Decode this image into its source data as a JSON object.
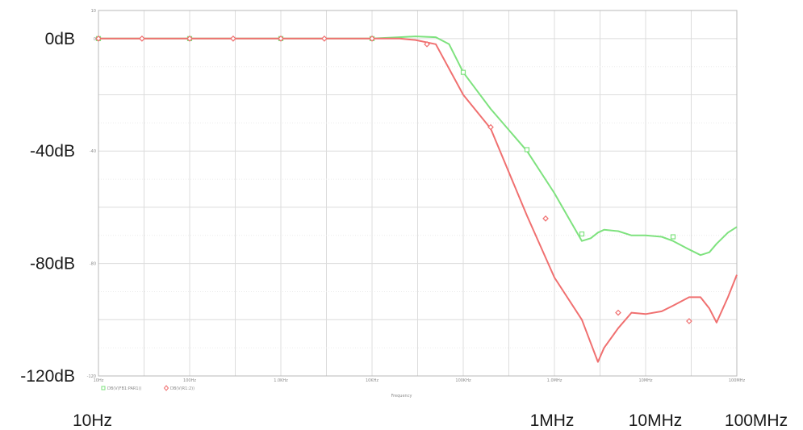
{
  "chart_data": {
    "type": "line",
    "x_scale": "log",
    "xlim": [
      10,
      100000000
    ],
    "ylim": [
      -120,
      10
    ],
    "grid": true,
    "xlabel": "Frequency",
    "y_tick_labels": [
      "0dB",
      "-40dB",
      "-80dB",
      "-120dB"
    ],
    "y_tick_values": [
      0,
      -40,
      -80,
      -120
    ],
    "x_tick_labels": [
      "10Hz",
      "1MHz",
      "10MHz",
      "100MHz"
    ],
    "x_tick_values": [
      10,
      1000000,
      10000000,
      100000000
    ],
    "small_x_tick_labels": [
      "10Hz",
      "100Hz",
      "1.0KHz",
      "10KHz",
      "100KHz",
      "1.0MHz",
      "10MHz",
      "100MHz"
    ],
    "small_y_tick_labels": [
      "10",
      "0",
      "-40",
      "-80",
      "-120"
    ],
    "legend_entries": [
      "DB(V(FB1:PAR1))",
      "DB(V(R1:2))"
    ],
    "series": [
      {
        "name": "DB(V(FB1:PAR1))",
        "color": "#7ee27e",
        "marker": "square",
        "x": [
          10,
          30,
          100,
          300,
          1000,
          3000,
          10000,
          20000,
          30000,
          50000,
          70000,
          100000,
          200000,
          500000,
          1000000,
          1500000,
          2000000,
          2500000,
          3000000,
          3500000,
          5000000,
          7000000,
          10000000,
          15000000,
          20000000,
          30000000,
          40000000,
          50000000,
          60000000,
          80000000,
          100000000
        ],
        "y": [
          0,
          0,
          0,
          0,
          0,
          0,
          0,
          0.5,
          0.8,
          0.5,
          -2,
          -12,
          -25,
          -40,
          -55,
          -65,
          -72,
          -71,
          -69,
          -68,
          -68.5,
          -70,
          -70,
          -70.5,
          -72,
          -75,
          -77,
          -76,
          -73,
          -69,
          -67
        ],
        "markers_x": [
          10,
          100,
          1000,
          10000,
          100000,
          500000,
          2000000,
          20000000
        ],
        "markers_y": [
          0,
          0,
          0,
          0,
          -12,
          -39.5,
          -69.5,
          -70.5
        ]
      },
      {
        "name": "DB(V(R1:2))",
        "color": "#f07070",
        "marker": "diamond",
        "x": [
          10,
          30,
          100,
          300,
          1000,
          3000,
          10000,
          20000,
          30000,
          50000,
          100000,
          200000,
          500000,
          1000000,
          2000000,
          3000000,
          3500000,
          5000000,
          7000000,
          10000000,
          15000000,
          20000000,
          30000000,
          40000000,
          50000000,
          60000000,
          80000000,
          100000000
        ],
        "y": [
          0,
          0,
          0,
          0,
          0,
          0,
          0,
          0,
          -0.5,
          -2,
          -20,
          -32,
          -63,
          -85,
          -100,
          -115,
          -110,
          -103,
          -97.5,
          -98,
          -97,
          -95,
          -92,
          -92,
          -96,
          -101,
          -92,
          -84
        ],
        "markers_x": [
          10,
          30,
          100,
          300,
          1000,
          3000,
          10000,
          40000,
          200000,
          800000,
          5000000,
          30000000
        ],
        "markers_y": [
          0,
          0,
          0,
          0,
          0,
          0,
          0,
          -2,
          -31.5,
          -64,
          -97.5,
          -100.5
        ]
      }
    ]
  }
}
